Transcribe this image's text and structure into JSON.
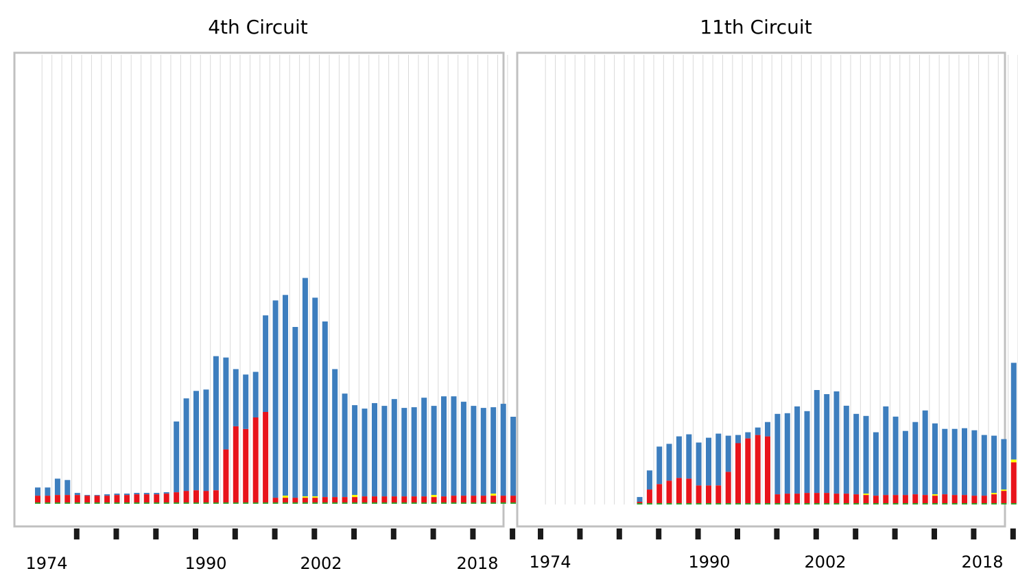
{
  "chart_data": [
    {
      "type": "bar",
      "stacked": true,
      "title": "4th Circuit",
      "xlabel": "",
      "ylabel": "",
      "x_tick_labels": [
        "1974",
        "1990",
        "2002",
        "2018"
      ],
      "x": [
        1970,
        1971,
        1972,
        1973,
        1974,
        1975,
        1976,
        1977,
        1978,
        1979,
        1980,
        1981,
        1982,
        1983,
        1984,
        1985,
        1986,
        1987,
        1988,
        1989,
        1990,
        1991,
        1992,
        1993,
        1994,
        1995,
        1996,
        1997,
        1998,
        1999,
        2000,
        2001,
        2002,
        2003,
        2004,
        2005,
        2006,
        2007,
        2008,
        2009,
        2010,
        2011,
        2012,
        2013,
        2014,
        2015,
        2016,
        2017,
        2018
      ],
      "ylim": [
        0,
        660
      ],
      "grid": true,
      "colors": {
        "blue": "#3d7ebe",
        "red": "#e8141b",
        "yellow": "#ffff00",
        "green": "#33a02c"
      },
      "series": [
        {
          "color": "#33a02c",
          "values": [
            2,
            2,
            2,
            2,
            2,
            2,
            2,
            2,
            2,
            2,
            2,
            2,
            2,
            2,
            2,
            2,
            2,
            2,
            2,
            2,
            2,
            2,
            2,
            2,
            2,
            2,
            2,
            2,
            2,
            2,
            2,
            2,
            2,
            2,
            2,
            2,
            2,
            2,
            2,
            2,
            2,
            2,
            2,
            2,
            2,
            2,
            2,
            2,
            2
          ]
        },
        {
          "color": "#e8141b",
          "values": [
            10,
            10,
            11,
            11,
            11,
            10,
            10,
            10,
            11,
            11,
            12,
            12,
            12,
            13,
            15,
            17,
            18,
            17,
            18,
            78,
            112,
            108,
            125,
            133,
            7,
            7,
            7,
            7,
            7,
            8,
            8,
            8,
            8,
            9,
            9,
            9,
            9,
            9,
            9,
            9,
            8,
            9,
            10,
            10,
            10,
            10,
            10,
            10,
            10
          ]
        },
        {
          "color": "#ffff00",
          "values": [
            0,
            0,
            0,
            0,
            0,
            0,
            0,
            0,
            0,
            0,
            0,
            0,
            0,
            0,
            0,
            0,
            0,
            0,
            0,
            0,
            0,
            0,
            0,
            0,
            0,
            3,
            0,
            2,
            2,
            0,
            0,
            0,
            3,
            0,
            0,
            0,
            0,
            0,
            0,
            0,
            3,
            0,
            0,
            0,
            0,
            0,
            3,
            0,
            0
          ]
        },
        {
          "color": "#3d7ebe",
          "values": [
            12,
            12,
            24,
            22,
            3,
            1,
            1,
            2,
            2,
            2,
            2,
            2,
            2,
            2,
            104,
            136,
            146,
            149,
            197,
            135,
            84,
            80,
            67,
            142,
            290,
            295,
            251,
            321,
            292,
            258,
            188,
            152,
            132,
            129,
            137,
            133,
            143,
            130,
            131,
            145,
            131,
            147,
            146,
            138,
            132,
            129,
            127,
            135,
            116
          ]
        }
      ]
    },
    {
      "type": "bar",
      "stacked": true,
      "title": "11th Circuit",
      "xlabel": "",
      "ylabel": "",
      "x_tick_labels": [
        "1974",
        "1990",
        "2002",
        "2018"
      ],
      "x": [
        1970,
        1971,
        1972,
        1973,
        1974,
        1975,
        1976,
        1977,
        1978,
        1979,
        1980,
        1981,
        1982,
        1983,
        1984,
        1985,
        1986,
        1987,
        1988,
        1989,
        1990,
        1991,
        1992,
        1993,
        1994,
        1995,
        1996,
        1997,
        1998,
        1999,
        2000,
        2001,
        2002,
        2003,
        2004,
        2005,
        2006,
        2007,
        2008,
        2009,
        2010,
        2011,
        2012,
        2013,
        2014,
        2015,
        2016,
        2017,
        2018
      ],
      "ylim": [
        0,
        660
      ],
      "grid": true,
      "colors": {
        "blue": "#3d7ebe",
        "red": "#e8141b",
        "yellow": "#ffff00",
        "green": "#33a02c"
      },
      "series": [
        {
          "color": "#33a02c",
          "values": [
            0,
            0,
            0,
            0,
            0,
            0,
            0,
            0,
            0,
            0,
            2,
            2,
            2,
            2,
            2,
            2,
            2,
            2,
            2,
            2,
            2,
            2,
            2,
            2,
            2,
            2,
            2,
            2,
            2,
            2,
            2,
            2,
            2,
            2,
            2,
            2,
            2,
            2,
            2,
            2,
            2,
            2,
            2,
            2,
            2,
            2,
            2,
            2,
            2
          ]
        },
        {
          "color": "#e8141b",
          "values": [
            0,
            0,
            0,
            0,
            0,
            0,
            0,
            0,
            0,
            0,
            2,
            20,
            28,
            33,
            37,
            36,
            26,
            26,
            26,
            46,
            88,
            95,
            100,
            98,
            13,
            14,
            14,
            15,
            15,
            15,
            14,
            14,
            13,
            12,
            11,
            12,
            12,
            12,
            13,
            12,
            11,
            13,
            12,
            12,
            11,
            11,
            13,
            18,
            60
          ]
        },
        {
          "color": "#ffff00",
          "values": [
            0,
            0,
            0,
            0,
            0,
            0,
            0,
            0,
            0,
            0,
            0,
            0,
            0,
            0,
            0,
            0,
            0,
            0,
            0,
            0,
            0,
            0,
            0,
            0,
            0,
            0,
            0,
            0,
            0,
            0,
            0,
            0,
            0,
            2,
            0,
            0,
            0,
            0,
            0,
            0,
            2,
            0,
            0,
            0,
            0,
            0,
            2,
            2,
            4
          ]
        },
        {
          "color": "#3d7ebe",
          "values": [
            0,
            0,
            0,
            0,
            0,
            0,
            0,
            0,
            0,
            0,
            7,
            28,
            55,
            54,
            61,
            65,
            63,
            70,
            76,
            53,
            12,
            9,
            11,
            21,
            118,
            118,
            128,
            120,
            151,
            145,
            150,
            129,
            118,
            114,
            93,
            130,
            115,
            94,
            106,
            124,
            104,
            96,
            97,
            98,
            96,
            89,
            84,
            74,
            142
          ]
        }
      ]
    }
  ]
}
